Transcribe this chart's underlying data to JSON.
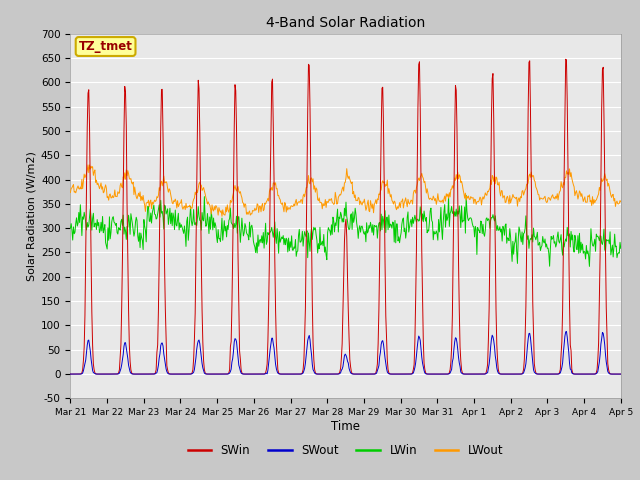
{
  "title": "4-Band Solar Radiation",
  "xlabel": "Time",
  "ylabel": "Solar Radiation (W/m2)",
  "annotation": "TZ_tmet",
  "ylim": [
    -50,
    700
  ],
  "colors": {
    "SWin": "#cc0000",
    "SWout": "#0000cc",
    "LWin": "#00cc00",
    "LWout": "#ff9900"
  },
  "fig_bg_color": "#c8c8c8",
  "plot_bg_color": "#e8e8e8",
  "n_days": 15,
  "x_tick_labels": [
    "Mar 21",
    "Mar 22",
    "Mar 23",
    "Mar 24",
    "Mar 25",
    "Mar 26",
    "Mar 27",
    "Mar 28",
    "Mar 29",
    "Mar 30",
    "Mar 31",
    "Apr 1",
    "Apr 2",
    "Apr 3",
    "Apr 4",
    "Apr 5"
  ],
  "peaks_SWin": [
    600,
    590,
    590,
    600,
    600,
    620,
    640,
    320,
    600,
    655,
    600,
    620,
    650,
    660,
    640
  ],
  "peaks_SWout": [
    70,
    65,
    65,
    70,
    75,
    75,
    80,
    40,
    70,
    80,
    75,
    80,
    85,
    90,
    85
  ],
  "lwin_vals": [
    290,
    280,
    310,
    295,
    280,
    260,
    255,
    300,
    285,
    295,
    305,
    285,
    260,
    255,
    250
  ],
  "lwout_vals": [
    380,
    365,
    350,
    340,
    335,
    340,
    350,
    355,
    345,
    355,
    360,
    355,
    360,
    365,
    355
  ]
}
